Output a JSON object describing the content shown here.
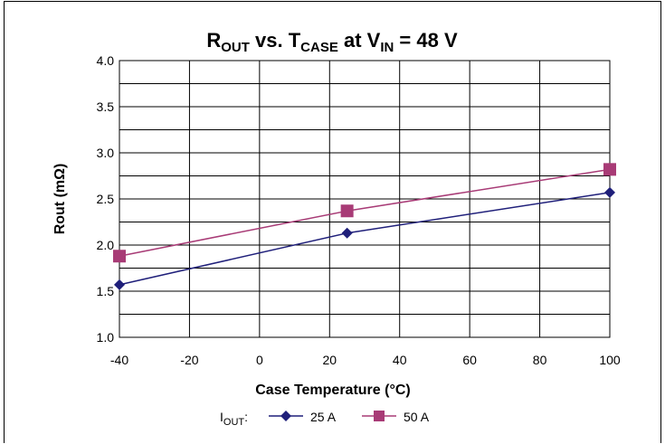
{
  "chart_data": {
    "type": "line",
    "title": {
      "r": "R",
      "r_sub": "OUT",
      "vs": " vs. T",
      "t_sub": "CASE",
      "at": " at V",
      "v_sub": "IN",
      "tail": " = 48 V"
    },
    "xlabel": "Case Temperature (°C)",
    "ylabel": "Rout (mΩ)",
    "xlim": [
      -40,
      100
    ],
    "ylim": [
      1.0,
      4.0
    ],
    "x_ticks": [
      -40,
      -20,
      0,
      20,
      40,
      60,
      80,
      100
    ],
    "y_ticks": [
      "1.0",
      "1.5",
      "2.0",
      "2.5",
      "3.0",
      "3.5",
      "4.0"
    ],
    "y_minor_step": 0.25,
    "grid": true,
    "legend": {
      "prefix": "I",
      "prefix_sub": "OUT",
      "prefix_colon": ":",
      "placement": "bottom"
    },
    "series": [
      {
        "name": "25 A",
        "color": "#1f1f7a",
        "marker": "diamond",
        "x": [
          -40,
          25,
          100
        ],
        "y": [
          1.57,
          2.13,
          2.57
        ]
      },
      {
        "name": "50 A",
        "color": "#a83b76",
        "marker": "square",
        "x": [
          -40,
          25,
          100
        ],
        "y": [
          1.88,
          2.37,
          2.82
        ]
      }
    ]
  }
}
